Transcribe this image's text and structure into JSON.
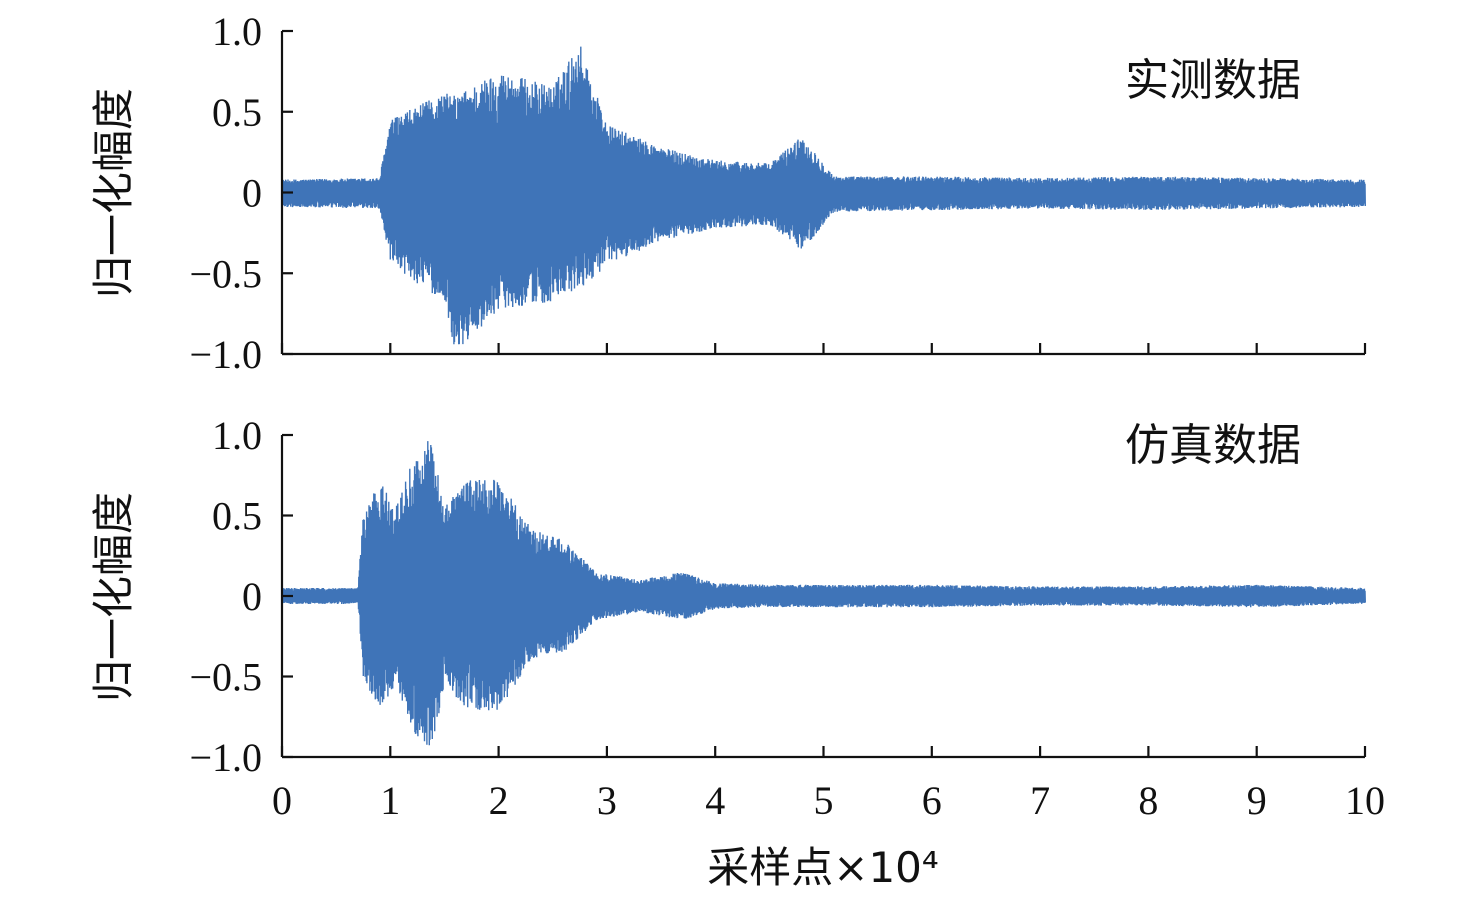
{
  "chart_data": [
    {
      "type": "line",
      "panel_label": "实测数据",
      "ylabel": "归一化幅度",
      "ylim": [
        -1.0,
        1.0
      ],
      "xlim": [
        0,
        10
      ],
      "yticks": [
        "1.0",
        "0.5",
        "0",
        "−0.5",
        "−1.0"
      ],
      "yticks_values": [
        1.0,
        0.5,
        0,
        -0.5,
        -1.0
      ],
      "color": "#3f74b8",
      "envelope": {
        "x": [
          0,
          0.9,
          1.0,
          1.5,
          1.6,
          2.0,
          2.5,
          2.75,
          3.0,
          3.5,
          4.0,
          4.5,
          4.8,
          5.1,
          6.0,
          7.0,
          8.0,
          9.0,
          10.0
        ],
        "upper": [
          0.08,
          0.09,
          0.45,
          0.62,
          0.6,
          0.75,
          0.66,
          0.93,
          0.42,
          0.28,
          0.2,
          0.18,
          0.35,
          0.1,
          0.1,
          0.09,
          0.1,
          0.09,
          0.08
        ],
        "lower": [
          -0.09,
          -0.1,
          -0.45,
          -0.68,
          -1.0,
          -0.72,
          -0.68,
          -0.6,
          -0.45,
          -0.3,
          -0.22,
          -0.2,
          -0.36,
          -0.12,
          -0.11,
          -0.1,
          -0.11,
          -0.1,
          -0.09
        ]
      }
    },
    {
      "type": "line",
      "panel_label": "仿真数据",
      "ylabel": "归一化幅度",
      "ylim": [
        -1.0,
        1.0
      ],
      "xlim": [
        0,
        10
      ],
      "yticks": [
        "1.0",
        "0.5",
        "0",
        "−0.5",
        "−1.0"
      ],
      "yticks_values": [
        1.0,
        0.5,
        0,
        -0.5,
        -1.0
      ],
      "xticks": [
        "0",
        "1",
        "2",
        "3",
        "4",
        "5",
        "6",
        "7",
        "8",
        "9",
        "10"
      ],
      "xticks_values": [
        0,
        1,
        2,
        3,
        4,
        5,
        6,
        7,
        8,
        9,
        10
      ],
      "xlabel": "采样点×10⁴",
      "color": "#3f74b8",
      "envelope": {
        "x": [
          0,
          0.7,
          0.75,
          0.9,
          1.05,
          1.2,
          1.3,
          1.37,
          1.5,
          1.7,
          2.0,
          2.3,
          2.6,
          2.9,
          3.3,
          3.7,
          4.0,
          4.5,
          5.0,
          6.0,
          7.0,
          8.0,
          9.0,
          10.0
        ],
        "upper": [
          0.05,
          0.05,
          0.5,
          0.72,
          0.55,
          0.83,
          0.9,
          1.0,
          0.55,
          0.72,
          0.73,
          0.42,
          0.35,
          0.15,
          0.1,
          0.15,
          0.08,
          0.07,
          0.07,
          0.07,
          0.06,
          0.06,
          0.07,
          0.05
        ],
        "lower": [
          -0.05,
          -0.05,
          -0.52,
          -0.7,
          -0.55,
          -0.85,
          -0.9,
          -0.98,
          -0.55,
          -0.7,
          -0.72,
          -0.4,
          -0.35,
          -0.15,
          -0.1,
          -0.15,
          -0.08,
          -0.07,
          -0.07,
          -0.07,
          -0.06,
          -0.06,
          -0.07,
          -0.05
        ]
      }
    }
  ]
}
